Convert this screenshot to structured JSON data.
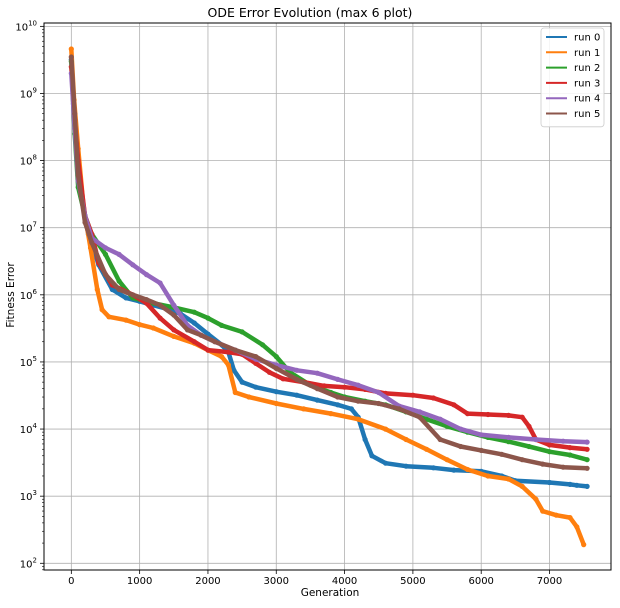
{
  "chart_data": {
    "type": "line",
    "title": "ODE Error Evolution (max 6 plot)",
    "xlabel": "Generation",
    "ylabel": "Fitness Error",
    "xlim": [
      -400,
      7900
    ],
    "ylim_exponent": [
      1.9,
      10.05
    ],
    "y_scale": "log",
    "grid": true,
    "legend_position": "top-right",
    "x_ticks": [
      0,
      1000,
      2000,
      3000,
      4000,
      5000,
      6000,
      7000
    ],
    "x_tick_labels": [
      "0",
      "1000",
      "2000",
      "3000",
      "4000",
      "5000",
      "6000",
      "7000"
    ],
    "y_ticks": [
      2,
      3,
      4,
      5,
      6,
      7,
      8,
      9,
      10
    ],
    "y_tick_base": "10",
    "series": [
      {
        "name": "run 0",
        "color": "#1f77b4",
        "points": [
          [
            0,
            3200000000
          ],
          [
            30,
            700000000
          ],
          [
            80,
            100000000
          ],
          [
            150,
            30000000
          ],
          [
            250,
            8000000
          ],
          [
            400,
            2800000
          ],
          [
            600,
            1200000
          ],
          [
            800,
            900000
          ],
          [
            1000,
            800000
          ],
          [
            1200,
            700000
          ],
          [
            1400,
            620000
          ],
          [
            1600,
            520000
          ],
          [
            1800,
            380000
          ],
          [
            2000,
            260000
          ],
          [
            2200,
            180000
          ],
          [
            2300,
            140000
          ],
          [
            2380,
            75000
          ],
          [
            2500,
            50000
          ],
          [
            2700,
            42000
          ],
          [
            3000,
            36000
          ],
          [
            3300,
            32000
          ],
          [
            3600,
            27000
          ],
          [
            3900,
            23000
          ],
          [
            4100,
            20000
          ],
          [
            4200,
            15000
          ],
          [
            4300,
            7000
          ],
          [
            4400,
            4000
          ],
          [
            4600,
            3100
          ],
          [
            4900,
            2800
          ],
          [
            5300,
            2650
          ],
          [
            5600,
            2450
          ],
          [
            6000,
            2350
          ],
          [
            6300,
            2000
          ],
          [
            6500,
            1700
          ],
          [
            7000,
            1600
          ],
          [
            7300,
            1500
          ],
          [
            7400,
            1450
          ],
          [
            7550,
            1400
          ]
        ]
      },
      {
        "name": "run 1",
        "color": "#ff7f0e",
        "points": [
          [
            0,
            4600000000
          ],
          [
            40,
            800000000
          ],
          [
            100,
            150000000
          ],
          [
            180,
            20000000
          ],
          [
            280,
            5000000
          ],
          [
            380,
            1200000
          ],
          [
            450,
            600000
          ],
          [
            550,
            470000
          ],
          [
            800,
            420000
          ],
          [
            1000,
            360000
          ],
          [
            1200,
            320000
          ],
          [
            1500,
            240000
          ],
          [
            1800,
            190000
          ],
          [
            2000,
            150000
          ],
          [
            2200,
            120000
          ],
          [
            2300,
            90000
          ],
          [
            2400,
            35000
          ],
          [
            2600,
            30000
          ],
          [
            3000,
            24000
          ],
          [
            3400,
            20000
          ],
          [
            3800,
            17000
          ],
          [
            4200,
            14000
          ],
          [
            4600,
            10000
          ],
          [
            4900,
            7000
          ],
          [
            5200,
            5000
          ],
          [
            5500,
            3500
          ],
          [
            5800,
            2500
          ],
          [
            6100,
            2000
          ],
          [
            6400,
            1800
          ],
          [
            6600,
            1400
          ],
          [
            6800,
            900
          ],
          [
            6900,
            600
          ],
          [
            7100,
            520
          ],
          [
            7300,
            480
          ],
          [
            7400,
            350
          ],
          [
            7500,
            190
          ]
        ]
      },
      {
        "name": "run 2",
        "color": "#2ca02c",
        "points": [
          [
            0,
            3000000000
          ],
          [
            50,
            250000000
          ],
          [
            100,
            40000000
          ],
          [
            200,
            15000000
          ],
          [
            300,
            8000000
          ],
          [
            500,
            4000000
          ],
          [
            700,
            1600000
          ],
          [
            900,
            900000
          ],
          [
            1200,
            750000
          ],
          [
            1500,
            650000
          ],
          [
            1800,
            550000
          ],
          [
            2000,
            450000
          ],
          [
            2200,
            350000
          ],
          [
            2500,
            280000
          ],
          [
            2800,
            180000
          ],
          [
            3000,
            120000
          ],
          [
            3200,
            70000
          ],
          [
            3500,
            45000
          ],
          [
            3800,
            35000
          ],
          [
            4000,
            30000
          ],
          [
            4300,
            26000
          ],
          [
            4600,
            23000
          ],
          [
            4900,
            18000
          ],
          [
            5200,
            14000
          ],
          [
            5500,
            11000
          ],
          [
            5800,
            9000
          ],
          [
            6100,
            7500
          ],
          [
            6400,
            6500
          ],
          [
            6700,
            5500
          ],
          [
            7000,
            4600
          ],
          [
            7300,
            4100
          ],
          [
            7550,
            3500
          ]
        ]
      },
      {
        "name": "run 3",
        "color": "#d62728",
        "points": [
          [
            0,
            2500000000
          ],
          [
            50,
            400000000
          ],
          [
            100,
            100000000
          ],
          [
            200,
            15000000
          ],
          [
            300,
            8000000
          ],
          [
            400,
            3000000
          ],
          [
            600,
            1400000
          ],
          [
            900,
            1000000
          ],
          [
            1100,
            750000
          ],
          [
            1300,
            450000
          ],
          [
            1500,
            300000
          ],
          [
            1800,
            200000
          ],
          [
            2000,
            150000
          ],
          [
            2300,
            140000
          ],
          [
            2500,
            130000
          ],
          [
            2700,
            95000
          ],
          [
            2900,
            70000
          ],
          [
            3100,
            56000
          ],
          [
            3400,
            50000
          ],
          [
            3700,
            44000
          ],
          [
            4000,
            42000
          ],
          [
            4300,
            39000
          ],
          [
            4600,
            34000
          ],
          [
            5000,
            32000
          ],
          [
            5300,
            29000
          ],
          [
            5600,
            23000
          ],
          [
            5800,
            17000
          ],
          [
            6100,
            16500
          ],
          [
            6400,
            16000
          ],
          [
            6600,
            15000
          ],
          [
            6700,
            11000
          ],
          [
            6800,
            7000
          ],
          [
            7000,
            5800
          ],
          [
            7300,
            5300
          ],
          [
            7550,
            5000
          ]
        ]
      },
      {
        "name": "run 4",
        "color": "#9467bd",
        "points": [
          [
            0,
            2000000000
          ],
          [
            50,
            300000000
          ],
          [
            100,
            50000000
          ],
          [
            200,
            15000000
          ],
          [
            300,
            7000000
          ],
          [
            500,
            5000000
          ],
          [
            700,
            4000000
          ],
          [
            900,
            2800000
          ],
          [
            1100,
            2000000
          ],
          [
            1300,
            1500000
          ],
          [
            1500,
            700000
          ],
          [
            1700,
            350000
          ],
          [
            1900,
            250000
          ],
          [
            2100,
            200000
          ],
          [
            2400,
            150000
          ],
          [
            2700,
            110000
          ],
          [
            3000,
            90000
          ],
          [
            3300,
            75000
          ],
          [
            3600,
            68000
          ],
          [
            3900,
            55000
          ],
          [
            4200,
            45000
          ],
          [
            4500,
            35000
          ],
          [
            4800,
            22000
          ],
          [
            5100,
            18000
          ],
          [
            5400,
            14000
          ],
          [
            5700,
            10000
          ],
          [
            6000,
            8200
          ],
          [
            6400,
            7500
          ],
          [
            6800,
            7000
          ],
          [
            7200,
            6600
          ],
          [
            7550,
            6400
          ]
        ]
      },
      {
        "name": "run 5",
        "color": "#8c564b",
        "points": [
          [
            0,
            3500000000
          ],
          [
            50,
            500000000
          ],
          [
            100,
            60000000
          ],
          [
            200,
            12000000
          ],
          [
            300,
            6000000
          ],
          [
            500,
            2000000
          ],
          [
            700,
            1200000
          ],
          [
            900,
            1000000
          ],
          [
            1100,
            850000
          ],
          [
            1300,
            700000
          ],
          [
            1500,
            500000
          ],
          [
            1700,
            300000
          ],
          [
            1900,
            250000
          ],
          [
            2100,
            200000
          ],
          [
            2400,
            150000
          ],
          [
            2700,
            120000
          ],
          [
            3000,
            80000
          ],
          [
            3300,
            55000
          ],
          [
            3600,
            40000
          ],
          [
            3900,
            30000
          ],
          [
            4200,
            26000
          ],
          [
            4500,
            24000
          ],
          [
            4800,
            20000
          ],
          [
            5100,
            15000
          ],
          [
            5400,
            7000
          ],
          [
            5700,
            5500
          ],
          [
            6000,
            4800
          ],
          [
            6300,
            4200
          ],
          [
            6600,
            3500
          ],
          [
            6900,
            3000
          ],
          [
            7200,
            2700
          ],
          [
            7550,
            2600
          ]
        ]
      }
    ]
  }
}
